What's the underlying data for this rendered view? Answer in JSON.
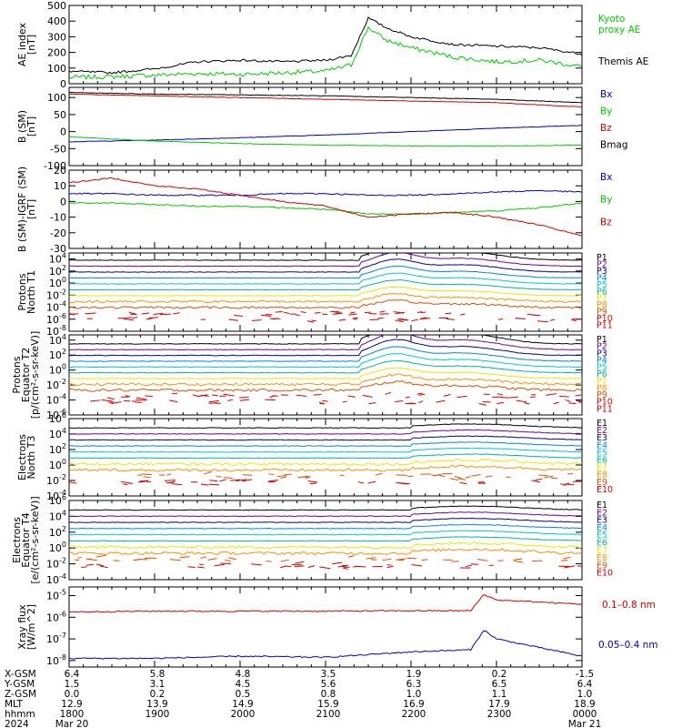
{
  "colors": {
    "black": "#000000",
    "red": "#d40000",
    "green": "#00cc00",
    "blue": "#0000d0",
    "purple": "#7000a0",
    "navy": "#0000a0",
    "dodger": "#0080ff",
    "cyan": "#00c8c8",
    "teal": "#00b890",
    "lime": "#70d800",
    "yellow": "#e8e800",
    "orange": "#ff9000",
    "darkorange": "#e05000"
  },
  "chart_data": [
    {
      "type": "line",
      "ylabel": [
        "AE index",
        "[nT]"
      ],
      "ylim": [
        0,
        500
      ],
      "yticks": [
        "0",
        "100",
        "200",
        "300",
        "400",
        "500"
      ],
      "x": [
        0,
        0.5,
        1,
        1.5,
        2,
        2.5,
        3,
        3.3,
        3.5,
        3.7,
        4,
        4.5,
        5,
        5.5,
        6
      ],
      "series": [
        {
          "name": "Kyoto proxy AE",
          "color": "green",
          "values": [
            40,
            45,
            55,
            65,
            60,
            70,
            80,
            120,
            360,
            280,
            230,
            170,
            140,
            150,
            110
          ]
        },
        {
          "name": "Themis AE",
          "color": "black",
          "values": [
            80,
            70,
            95,
            140,
            150,
            140,
            150,
            180,
            420,
            360,
            300,
            250,
            240,
            230,
            190
          ]
        }
      ]
    },
    {
      "type": "line",
      "ylabel": [
        "B (SM)",
        "[nT]"
      ],
      "ylim": [
        -100,
        130
      ],
      "yticks": [
        "-100",
        "-50",
        "0",
        "50",
        "100"
      ],
      "x": [
        0,
        1,
        2,
        3,
        4,
        5,
        6
      ],
      "series": [
        {
          "name": "Bx",
          "color": "blue",
          "values": [
            -30,
            -25,
            -18,
            -10,
            0,
            10,
            18
          ]
        },
        {
          "name": "By",
          "color": "green",
          "values": [
            -15,
            -28,
            -35,
            -40,
            -42,
            -42,
            -40
          ]
        },
        {
          "name": "Bz",
          "color": "red",
          "values": [
            110,
            105,
            100,
            95,
            90,
            85,
            72
          ]
        },
        {
          "name": "Bmag",
          "color": "black",
          "values": [
            115,
            110,
            108,
            105,
            100,
            95,
            85
          ]
        }
      ]
    },
    {
      "type": "line",
      "ylabel": [
        "B (SM)-IGRF (SM)",
        "[nT]"
      ],
      "ylim": [
        -30,
        20
      ],
      "yticks": [
        "-30",
        "-20",
        "-10",
        "0",
        "10",
        "20"
      ],
      "x": [
        0,
        0.5,
        1,
        1.5,
        2,
        2.5,
        3,
        3.5,
        4,
        4.5,
        5,
        5.5,
        6
      ],
      "series": [
        {
          "name": "Bx",
          "color": "blue",
          "values": [
            5,
            5,
            4,
            4,
            4,
            5,
            5,
            4,
            4,
            5,
            6,
            7,
            6
          ]
        },
        {
          "name": "By",
          "color": "green",
          "values": [
            -1,
            -1,
            -2,
            -3,
            -3,
            -4,
            -5,
            -8,
            -8,
            -7,
            -6,
            -4,
            -1
          ]
        },
        {
          "name": "Bz",
          "color": "red",
          "values": [
            12,
            15,
            10,
            8,
            4,
            0,
            -3,
            -10,
            -8,
            -7,
            -10,
            -15,
            -22
          ]
        }
      ]
    },
    {
      "type": "line",
      "ylog": true,
      "ylabel": [
        "Protons",
        "North T1"
      ],
      "ylim": [
        -8,
        5
      ],
      "yticks": [
        "10^-8",
        "10^-6",
        "10^-4",
        "10^-2",
        "10^0",
        "10^2",
        "10^4"
      ],
      "legend": [
        "P1",
        "P2",
        "P3",
        "P4",
        "P5",
        "P6",
        "P7",
        "P8",
        "P9",
        "P10",
        "P11"
      ],
      "legend_colors": [
        "black",
        "purple",
        "navy",
        "dodger",
        "cyan",
        "teal",
        "yellow",
        "orange",
        "darkorange",
        "red",
        "red"
      ]
    },
    {
      "type": "line",
      "ylog": true,
      "ylabel": [
        "Protons",
        "Equator T2",
        "[p/(cm²-s-sr-keV)]"
      ],
      "ylim": [
        -6,
        4.7
      ],
      "yticks": [
        "10^-6",
        "10^-4",
        "10^-2",
        "10^0",
        "10^2",
        "10^4"
      ],
      "legend": [
        "P1",
        "P2",
        "P3",
        "P4",
        "P5",
        "P6",
        "P7",
        "P8",
        "P9",
        "P10",
        "P11"
      ],
      "legend_colors": [
        "black",
        "purple",
        "navy",
        "dodger",
        "cyan",
        "teal",
        "yellow",
        "orange",
        "darkorange",
        "red",
        "red"
      ]
    },
    {
      "type": "line",
      "ylog": true,
      "ylabel": [
        "Electrons",
        "North T3"
      ],
      "ylim": [
        -4,
        6
      ],
      "yticks": [
        "10^-4",
        "10^-2",
        "10^0",
        "10^2",
        "10^4",
        "10^6"
      ],
      "legend": [
        "E1",
        "E2",
        "E3",
        "E4",
        "E5",
        "E6",
        "E7",
        "E8",
        "E9",
        "E10"
      ],
      "legend_colors": [
        "black",
        "purple",
        "navy",
        "dodger",
        "cyan",
        "teal",
        "yellow",
        "orange",
        "darkorange",
        "red"
      ]
    },
    {
      "type": "line",
      "ylog": true,
      "ylabel": [
        "Electrons",
        "Equator T4",
        "[e/(cm²-s-sr-keV)]"
      ],
      "ylim": [
        -4,
        6
      ],
      "yticks": [
        "10^-4",
        "10^-2",
        "10^0",
        "10^2",
        "10^4",
        "10^6"
      ],
      "legend": [
        "E1",
        "E2",
        "E3",
        "E4",
        "E5",
        "E6",
        "E7",
        "E8",
        "E9",
        "E10"
      ],
      "legend_colors": [
        "black",
        "purple",
        "navy",
        "dodger",
        "cyan",
        "teal",
        "yellow",
        "orange",
        "darkorange",
        "red"
      ]
    },
    {
      "type": "line",
      "ylog": true,
      "ylabel": [
        "Xray flux",
        "[W/m^2]"
      ],
      "ylim": [
        -8.3,
        -4.6
      ],
      "yticks": [
        "10^-8",
        "10^-7",
        "10^-6",
        "10^-5"
      ],
      "x": [
        0,
        1,
        2,
        3,
        4,
        4.7,
        4.85,
        5,
        5.5,
        6
      ],
      "series": [
        {
          "name": "0.1–0.8 nm",
          "color": "red",
          "values": [
            -5.75,
            -5.72,
            -5.72,
            -5.72,
            -5.7,
            -5.7,
            -4.95,
            -5.2,
            -5.3,
            -5.4
          ]
        },
        {
          "name": "0.05–0.4 nm",
          "color": "blue",
          "values": [
            -7.9,
            -7.9,
            -7.8,
            -7.85,
            -7.6,
            -7.5,
            -6.6,
            -7.0,
            -7.4,
            -7.8
          ]
        }
      ]
    }
  ],
  "xaxis": {
    "row_labels": [
      "X-GSM",
      "Y-GSM",
      "Z-GSM",
      "MLT",
      "hhmm",
      "2024"
    ],
    "columns": [
      [
        "6.4",
        "1.5",
        "0.0",
        "12.9",
        "1800",
        "Mar 20"
      ],
      [
        "5.8",
        "3.1",
        "0.2",
        "13.9",
        "1900",
        ""
      ],
      [
        "4.8",
        "4.5",
        "0.5",
        "14.9",
        "2000",
        ""
      ],
      [
        "3.5",
        "5.6",
        "0.8",
        "15.9",
        "2100",
        ""
      ],
      [
        "1.9",
        "6.3",
        "1.0",
        "16.9",
        "2200",
        ""
      ],
      [
        "0.2",
        "6.5",
        "1.1",
        "17.9",
        "2300",
        ""
      ],
      [
        "-1.5",
        "6.4",
        "1.0",
        "18.9",
        "0000",
        "Mar 21"
      ]
    ]
  }
}
